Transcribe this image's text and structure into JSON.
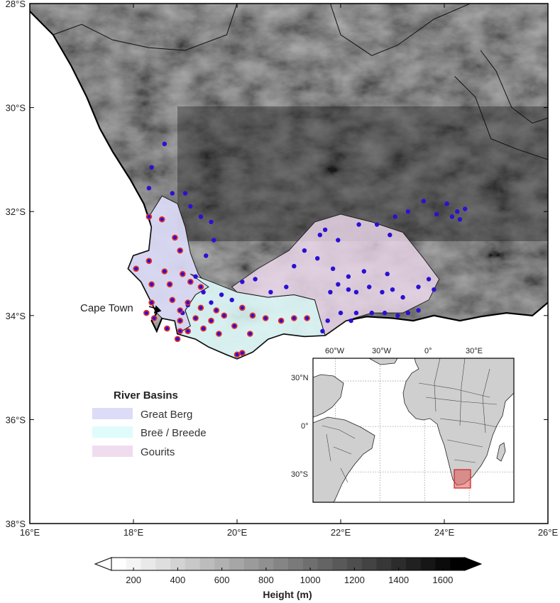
{
  "map": {
    "extent": {
      "lon": [
        16,
        26
      ],
      "lat": [
        -38,
        -28
      ]
    },
    "lat_ticks": [
      {
        "value": -28,
        "label": "28°S"
      },
      {
        "value": -30,
        "label": "30°S"
      },
      {
        "value": -32,
        "label": "32°S"
      },
      {
        "value": -34,
        "label": "34°S"
      },
      {
        "value": -36,
        "label": "36°S"
      },
      {
        "value": -38,
        "label": "38°S"
      }
    ],
    "lon_ticks": [
      {
        "value": 16,
        "label": "16°E"
      },
      {
        "value": 18,
        "label": "18°E"
      },
      {
        "value": 20,
        "label": "20°E"
      },
      {
        "value": 22,
        "label": "22°E"
      },
      {
        "value": 24,
        "label": "24°E"
      },
      {
        "value": 26,
        "label": "26°E"
      }
    ],
    "city": {
      "name": "Cape Town",
      "lon": 18.5,
      "lat": -33.95
    },
    "colors": {
      "ocean": "#ffffff",
      "terrain_dark": "#1a1a1a",
      "terrain_light": "#f2f2f2"
    }
  },
  "legend": {
    "title": "River Basins",
    "items": [
      {
        "label": "Great Berg",
        "color": "#dcdcf8"
      },
      {
        "label": "Breë / Breede",
        "color": "#e0fbfb"
      },
      {
        "label": "Gourits",
        "color": "#f0dcef"
      }
    ]
  },
  "stations": {
    "ringed": [
      [
        18.3,
        -32.1
      ],
      [
        18.55,
        -32.15
      ],
      [
        18.8,
        -32.5
      ],
      [
        18.9,
        -32.75
      ],
      [
        18.3,
        -32.95
      ],
      [
        18.6,
        -33.15
      ],
      [
        18.05,
        -33.1
      ],
      [
        18.95,
        -33.2
      ],
      [
        19.1,
        -33.35
      ],
      [
        18.35,
        -33.4
      ],
      [
        18.7,
        -33.4
      ],
      [
        19.3,
        -33.45
      ],
      [
        18.35,
        -33.75
      ],
      [
        18.75,
        -33.7
      ],
      [
        19.05,
        -33.75
      ],
      [
        18.9,
        -33.9
      ],
      [
        19.3,
        -33.85
      ],
      [
        19.6,
        -33.9
      ],
      [
        20.1,
        -33.85
      ],
      [
        18.4,
        -34.05
      ],
      [
        18.9,
        -34.1
      ],
      [
        19.2,
        -34.05
      ],
      [
        19.5,
        -34.1
      ],
      [
        19.75,
        -34.0
      ],
      [
        20.3,
        -34.0
      ],
      [
        20.55,
        -34.05
      ],
      [
        20.85,
        -34.1
      ],
      [
        21.1,
        -34.05
      ],
      [
        21.35,
        -34.05
      ],
      [
        18.65,
        -34.25
      ],
      [
        19.05,
        -34.3
      ],
      [
        19.35,
        -34.25
      ],
      [
        19.65,
        -34.35
      ],
      [
        19.95,
        -34.2
      ],
      [
        20.25,
        -34.35
      ],
      [
        18.85,
        -34.45
      ],
      [
        20.0,
        -34.75
      ],
      [
        20.1,
        -34.72
      ],
      [
        18.9,
        -34.3
      ],
      [
        18.25,
        -33.95
      ]
    ],
    "plain": [
      [
        18.6,
        -30.7
      ],
      [
        18.35,
        -31.15
      ],
      [
        18.3,
        -31.55
      ],
      [
        18.75,
        -31.65
      ],
      [
        19.0,
        -31.65
      ],
      [
        19.1,
        -31.9
      ],
      [
        19.3,
        -32.1
      ],
      [
        19.5,
        -32.2
      ],
      [
        19.55,
        -32.55
      ],
      [
        19.4,
        -32.85
      ],
      [
        19.2,
        -33.25
      ],
      [
        19.35,
        -33.55
      ],
      [
        19.5,
        -33.75
      ],
      [
        19.7,
        -33.6
      ],
      [
        19.9,
        -33.7
      ],
      [
        20.1,
        -33.35
      ],
      [
        20.35,
        -33.3
      ],
      [
        20.65,
        -33.55
      ],
      [
        20.95,
        -33.45
      ],
      [
        21.1,
        -33.05
      ],
      [
        21.3,
        -32.75
      ],
      [
        21.55,
        -32.9
      ],
      [
        21.7,
        -32.35
      ],
      [
        21.85,
        -33.1
      ],
      [
        21.95,
        -33.4
      ],
      [
        22.15,
        -33.25
      ],
      [
        22.3,
        -33.55
      ],
      [
        22.55,
        -33.45
      ],
      [
        22.8,
        -33.55
      ],
      [
        22.9,
        -33.2
      ],
      [
        23.0,
        -33.5
      ],
      [
        23.2,
        -33.65
      ],
      [
        23.5,
        -33.45
      ],
      [
        23.7,
        -33.3
      ],
      [
        23.8,
        -33.5
      ],
      [
        22.15,
        -33.5
      ],
      [
        21.8,
        -33.55
      ],
      [
        22.45,
        -33.15
      ],
      [
        21.6,
        -32.45
      ],
      [
        21.95,
        -32.55
      ],
      [
        22.35,
        -32.25
      ],
      [
        22.7,
        -32.25
      ],
      [
        22.95,
        -32.45
      ],
      [
        23.05,
        -32.1
      ],
      [
        23.3,
        -32.0
      ],
      [
        23.6,
        -31.8
      ],
      [
        23.85,
        -32.05
      ],
      [
        24.05,
        -31.85
      ],
      [
        24.15,
        -32.1
      ],
      [
        24.25,
        -32.0
      ],
      [
        24.4,
        -31.95
      ],
      [
        24.3,
        -32.15
      ],
      [
        22.0,
        -33.95
      ],
      [
        22.3,
        -33.95
      ],
      [
        22.6,
        -33.95
      ],
      [
        22.85,
        -33.95
      ],
      [
        23.1,
        -34.0
      ],
      [
        23.3,
        -33.95
      ],
      [
        23.5,
        -33.9
      ],
      [
        22.2,
        -34.1
      ],
      [
        21.75,
        -34.1
      ],
      [
        21.65,
        -34.3
      ],
      [
        19.05,
        -33.8
      ],
      [
        18.95,
        -33.95
      ]
    ]
  },
  "inset": {
    "lon_ticks": [
      {
        "value": -60,
        "label": "60°W"
      },
      {
        "value": -30,
        "label": "30°W"
      },
      {
        "value": 0,
        "label": "0°"
      },
      {
        "value": 30,
        "label": "30°E"
      }
    ],
    "lat_ticks": [
      {
        "value": 30,
        "label": "30°N"
      },
      {
        "value": 0,
        "label": "0°"
      },
      {
        "value": -30,
        "label": "30°S"
      }
    ],
    "highlight_color": "#e05555"
  },
  "colorbar": {
    "title": "Height (m)",
    "ticks": [
      {
        "value": 200,
        "label": "200"
      },
      {
        "value": 400,
        "label": "400"
      },
      {
        "value": 600,
        "label": "600"
      },
      {
        "value": 800,
        "label": "800"
      },
      {
        "value": 1000,
        "label": "1000"
      },
      {
        "value": 1200,
        "label": "1200"
      },
      {
        "value": 1400,
        "label": "1400"
      },
      {
        "value": 1600,
        "label": "1600"
      }
    ],
    "range": [
      100,
      1700
    ]
  }
}
